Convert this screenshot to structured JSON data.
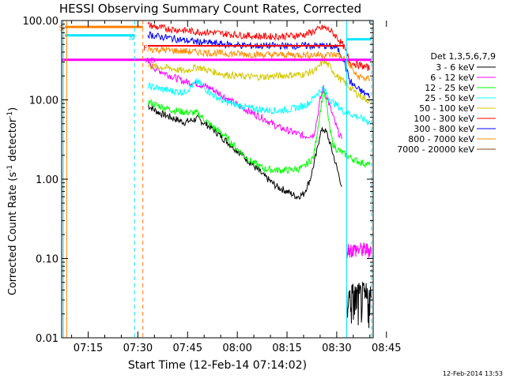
{
  "chart_data": {
    "type": "line",
    "title": "HESSI Observing Summary Count Rates, Corrected",
    "xlabel": "Start Time (12-Feb-14 07:14:02)",
    "ylabel_main": "Corrected Count Rate (s",
    "ylabel_sup1": "-1",
    "ylabel_mid": " detector",
    "ylabel_sup2": "-1",
    "ylabel_end": ")",
    "y_scale": "log",
    "ylim": [
      0.01,
      100
    ],
    "xlim_minutes": [
      7.0,
      101.0
    ],
    "x_tick_labels": [
      "07:15",
      "07:30",
      "07:45",
      "08:00",
      "08:15",
      "08:30",
      "08:45"
    ],
    "x_tick_minutes": [
      15,
      30,
      45,
      60,
      75,
      90,
      105
    ],
    "y_tick_labels": [
      "0.01",
      "0.10",
      "1.00",
      "10.00",
      "100.00"
    ],
    "y_tick_values": [
      0.01,
      0.1,
      1,
      10,
      100
    ],
    "legend_header": "Det 1,3,5,6,7,9",
    "legend_placement": "right",
    "timestamp": "12-Feb-2014 13:53",
    "flags": [
      {
        "label": "S",
        "color": "#ff7f00"
      },
      {
        "label": "N",
        "color": "#00e5ff"
      },
      {
        "label": "F",
        "color": "#ff0000"
      },
      {
        "label": "AD",
        "color": "#ff00ff"
      }
    ],
    "series": [
      {
        "name": "3 - 6 keV",
        "color": "#000000",
        "x": [
          33,
          36,
          40,
          44,
          48,
          52,
          56,
          60,
          64,
          68,
          72,
          75,
          78,
          80,
          82,
          84,
          85,
          86,
          87,
          88,
          89,
          90,
          91,
          91.5
        ],
        "y": [
          8.5,
          7.0,
          6.0,
          5.2,
          5.8,
          4.5,
          3.2,
          2.3,
          1.6,
          1.1,
          0.8,
          0.7,
          0.6,
          0.65,
          1.0,
          2.2,
          3.8,
          4.3,
          3.8,
          2.8,
          2.0,
          1.4,
          1.0,
          0.8
        ]
      },
      {
        "name": "6 - 12 keV",
        "color": "#ff00ff",
        "x": [
          33,
          36,
          40,
          44,
          48,
          52,
          56,
          60,
          64,
          68,
          72,
          76,
          80,
          83,
          84,
          85,
          86,
          87,
          88,
          89,
          90,
          91,
          91.5
        ],
        "y": [
          28,
          24,
          20,
          17,
          16,
          14,
          11,
          8.6,
          7.0,
          5.8,
          4.6,
          4.0,
          3.5,
          3.6,
          5.5,
          10,
          14,
          11,
          8,
          6,
          4.4,
          3.5,
          3.2
        ]
      },
      {
        "name": "12 - 25 keV",
        "color": "#00ff00",
        "x": [
          33,
          36,
          40,
          44,
          48,
          52,
          56,
          60,
          64,
          68,
          72,
          76,
          80,
          83,
          85,
          86,
          87,
          88,
          89,
          90,
          92,
          96,
          100
        ],
        "y": [
          9.5,
          8.5,
          7.5,
          7.0,
          6.8,
          4.8,
          3.6,
          2.4,
          1.7,
          1.35,
          1.3,
          1.3,
          1.4,
          1.9,
          7.0,
          13,
          8.5,
          4.0,
          2.7,
          2.4,
          2.1,
          1.7,
          1.5
        ]
      },
      {
        "name": "25 - 50 keV",
        "color": "#00ffff",
        "x": [
          33,
          36,
          40,
          44,
          48,
          52,
          56,
          60,
          64,
          68,
          72,
          76,
          80,
          82,
          84,
          86,
          88,
          90,
          92,
          96,
          100
        ],
        "y": [
          15,
          14,
          13,
          12.5,
          17,
          12,
          9.5,
          8.6,
          7.8,
          7.5,
          7.3,
          7.6,
          8.4,
          9.4,
          12,
          14,
          10,
          8.6,
          7.2,
          6.2,
          5.2
        ]
      },
      {
        "name": "50 - 100 keV",
        "color": "#d4c800",
        "x": [
          33,
          36,
          40,
          44,
          48,
          52,
          56,
          60,
          64,
          68,
          72,
          76,
          80,
          84,
          86,
          88,
          90,
          92,
          96,
          100
        ],
        "y": [
          27,
          26,
          25,
          23,
          26,
          23,
          21,
          20,
          19.5,
          19.5,
          20,
          20.5,
          21,
          24,
          31,
          26,
          20,
          17,
          12,
          9.5
        ]
      },
      {
        "name": "100 - 300 keV",
        "color": "#ff0000",
        "x": [
          33,
          36,
          40,
          44,
          48,
          52,
          56,
          60,
          64,
          68,
          72,
          76,
          80,
          82,
          84,
          86,
          88,
          90,
          92,
          94,
          96,
          100
        ],
        "y": [
          88,
          82,
          78,
          75,
          72,
          71,
          68,
          66,
          64,
          63,
          63,
          64,
          66,
          70,
          76,
          82,
          75,
          62,
          48,
          30,
          28,
          25
        ]
      },
      {
        "name": "300 - 800 keV",
        "color": "#0000ff",
        "x": [
          33,
          36,
          40,
          44,
          48,
          52,
          56,
          60,
          64,
          68,
          72,
          76,
          80,
          84,
          86,
          88,
          90,
          92,
          94,
          96,
          100
        ],
        "y": [
          67,
          63,
          60,
          56,
          54,
          52,
          50,
          49,
          48,
          48,
          48,
          48,
          48,
          48,
          48,
          47,
          46,
          33,
          17,
          14,
          11
        ]
      },
      {
        "name": "800 - 7000 keV",
        "color": "#ff8c00",
        "x": [
          33,
          36,
          40,
          44,
          48,
          52,
          56,
          60,
          64,
          68,
          72,
          76,
          80,
          84,
          88,
          90,
          92,
          94,
          96,
          100
        ],
        "y": [
          44,
          43,
          42,
          41,
          40,
          39,
          38.5,
          38,
          37.5,
          37,
          37,
          37,
          37,
          37,
          37,
          37,
          34,
          27,
          20,
          18
        ]
      },
      {
        "name": "7000 - 20000 keV",
        "color": "#8b4513",
        "x": [],
        "y": []
      }
    ]
  }
}
